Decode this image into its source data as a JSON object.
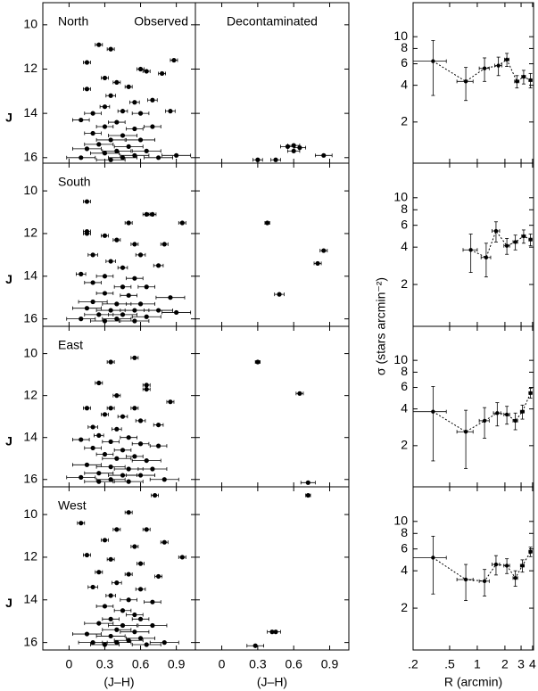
{
  "chart_data": [
    {
      "type": "scatter",
      "label": "North",
      "title": "Observed",
      "ylabel": "J",
      "color": "#000000",
      "x": [
        0.25,
        0.35,
        0.15,
        0.88,
        0.6,
        0.65,
        0.78,
        0.3,
        0.4,
        0.5,
        0.15,
        0.35,
        0.55,
        0.7,
        0.3,
        0.45,
        0.2,
        0.6,
        0.85,
        0.1,
        0.4,
        0.3,
        0.55,
        0.7,
        0.2,
        0.45,
        0.35,
        0.6,
        0.25,
        0.5,
        0.15,
        0.4,
        0.65,
        0.3,
        0.55,
        0.1,
        0.45,
        0.75,
        0.35,
        0.9
      ],
      "y": [
        10.9,
        11.1,
        11.7,
        11.6,
        12.0,
        12.1,
        12.2,
        12.4,
        12.6,
        12.8,
        12.9,
        13.2,
        13.5,
        13.4,
        13.7,
        13.9,
        14.0,
        14.0,
        13.9,
        14.3,
        14.4,
        14.6,
        14.7,
        14.6,
        14.9,
        15.0,
        15.2,
        15.2,
        15.4,
        15.5,
        15.6,
        15.7,
        15.7,
        15.8,
        15.9,
        16.0,
        16.0,
        16.0,
        16.1,
        15.9
      ],
      "xerr": [
        0.03,
        0.03,
        0.03,
        0.03,
        0.03,
        0.03,
        0.03,
        0.03,
        0.03,
        0.03,
        0.03,
        0.04,
        0.04,
        0.04,
        0.04,
        0.04,
        0.07,
        0.07,
        0.04,
        0.07,
        0.07,
        0.07,
        0.07,
        0.07,
        0.07,
        0.12,
        0.12,
        0.12,
        0.12,
        0.12,
        0.12,
        0.12,
        0.12,
        0.12,
        0.12,
        0.12,
        0.12,
        0.12,
        0.12,
        0.12
      ],
      "xlim": [
        -0.22,
        1.06
      ],
      "ylim": [
        16.25,
        9.0
      ],
      "yticks": [
        10,
        12,
        14,
        16
      ]
    },
    {
      "type": "scatter",
      "title": "Decontaminated",
      "color": "#000000",
      "x": [
        0.3,
        0.45,
        0.55,
        0.6,
        0.65,
        0.6,
        0.85
      ],
      "y": [
        16.1,
        16.1,
        15.5,
        15.45,
        15.55,
        15.7,
        15.9
      ],
      "xerr": [
        0.04,
        0.04,
        0.06,
        0.05,
        0.05,
        0.05,
        0.07
      ],
      "xlim": [
        -0.22,
        1.06
      ],
      "ylim": [
        16.25,
        9.0
      ]
    },
    {
      "type": "line",
      "color": "#000000",
      "linestyle": "dotted",
      "xscale": "log",
      "yscale": "log",
      "x": [
        0.33,
        0.75,
        1.2,
        1.7,
        2.1,
        2.7,
        3.2,
        3.8
      ],
      "y": [
        6.3,
        4.3,
        5.5,
        5.8,
        6.5,
        4.3,
        4.7,
        4.4
      ],
      "xerr": [
        0.13,
        0.15,
        0.15,
        0.15,
        0.12,
        0.15,
        0.15,
        0.15
      ],
      "yerr": [
        3.0,
        1.3,
        1.2,
        1.0,
        0.8,
        0.5,
        0.6,
        0.6
      ],
      "xlim": [
        0.2,
        4.1
      ],
      "ylim": [
        0.92,
        19
      ],
      "yticks": [
        2,
        4,
        6,
        8,
        10
      ]
    },
    {
      "type": "scatter",
      "label": "South",
      "ylabel": "J",
      "color": "#000000",
      "x": [
        0.15,
        0.15,
        0.15,
        0.65,
        0.7,
        0.95,
        0.5,
        0.3,
        0.4,
        0.55,
        0.8,
        0.2,
        0.6,
        0.35,
        0.45,
        0.75,
        0.1,
        0.3,
        0.55,
        0.2,
        0.45,
        0.65,
        0.3,
        0.5,
        0.85,
        0.2,
        0.4,
        0.6,
        0.15,
        0.35,
        0.55,
        0.75,
        0.25,
        0.45,
        0.65,
        0.1,
        0.4,
        0.9,
        0.3,
        0.55
      ],
      "y": [
        10.5,
        11.9,
        12.0,
        11.1,
        11.1,
        11.5,
        11.5,
        12.1,
        12.3,
        12.5,
        12.5,
        13.0,
        13.0,
        13.3,
        13.6,
        13.5,
        13.9,
        14.0,
        14.1,
        14.3,
        14.5,
        14.5,
        14.8,
        14.9,
        15.0,
        15.2,
        15.3,
        15.3,
        15.5,
        15.6,
        15.6,
        15.6,
        15.8,
        15.8,
        15.9,
        16.0,
        16.0,
        15.7,
        16.1,
        16.1
      ],
      "xerr": [
        0.03,
        0.03,
        0.03,
        0.03,
        0.03,
        0.03,
        0.03,
        0.03,
        0.03,
        0.03,
        0.03,
        0.04,
        0.04,
        0.04,
        0.04,
        0.04,
        0.04,
        0.07,
        0.07,
        0.07,
        0.07,
        0.07,
        0.07,
        0.07,
        0.12,
        0.12,
        0.12,
        0.12,
        0.12,
        0.12,
        0.12,
        0.12,
        0.12,
        0.12,
        0.12,
        0.12,
        0.12,
        0.12,
        0.12,
        0.12
      ],
      "xlim": [
        -0.22,
        1.06
      ],
      "ylim": [
        16.35,
        8.7
      ],
      "yticks": [
        10,
        12,
        14,
        16
      ]
    },
    {
      "type": "scatter",
      "color": "#000000",
      "x": [
        0.38,
        0.85,
        0.8,
        0.48
      ],
      "y": [
        11.5,
        12.8,
        13.4,
        14.85
      ],
      "xerr": [
        0.02,
        0.03,
        0.03,
        0.04
      ],
      "xlim": [
        -0.22,
        1.06
      ],
      "ylim": [
        16.35,
        8.7
      ]
    },
    {
      "type": "line",
      "color": "#000000",
      "linestyle": "dotted",
      "xscale": "log",
      "yscale": "log",
      "ylabel": "σ (stars arcmin⁻²)",
      "x": [
        0.85,
        1.25,
        1.6,
        2.1,
        2.6,
        3.2,
        3.8
      ],
      "y": [
        3.8,
        3.3,
        5.4,
        4.1,
        4.4,
        4.9,
        4.6
      ],
      "xerr": [
        0.15,
        0.15,
        0.15,
        0.15,
        0.15,
        0.15,
        0.15
      ],
      "yerr": [
        1.3,
        1.0,
        1.0,
        0.6,
        0.6,
        0.6,
        0.5
      ],
      "xlim": [
        0.2,
        4.1
      ],
      "ylim": [
        0.92,
        19
      ],
      "yticks": [
        2,
        4,
        6,
        8,
        10
      ]
    },
    {
      "type": "scatter",
      "label": "East",
      "ylabel": "J",
      "color": "#000000",
      "x": [
        0.35,
        0.55,
        0.25,
        0.65,
        0.65,
        0.4,
        0.85,
        0.15,
        0.35,
        0.55,
        0.3,
        0.45,
        0.6,
        0.75,
        0.2,
        0.4,
        0.25,
        0.5,
        0.1,
        0.35,
        0.6,
        0.75,
        0.2,
        0.45,
        0.3,
        0.55,
        0.4,
        0.65,
        0.15,
        0.35,
        0.5,
        0.7,
        0.25,
        0.45,
        0.6,
        0.1,
        0.35,
        0.8,
        0.5,
        0.25
      ],
      "y": [
        10.4,
        10.2,
        11.4,
        11.5,
        11.7,
        12.0,
        12.3,
        12.6,
        12.6,
        12.6,
        12.9,
        13.0,
        13.2,
        13.4,
        13.5,
        13.6,
        13.9,
        14.0,
        14.1,
        14.2,
        14.3,
        14.4,
        14.5,
        14.6,
        14.8,
        14.9,
        15.0,
        15.1,
        15.3,
        15.4,
        15.5,
        15.5,
        15.7,
        15.8,
        15.8,
        15.9,
        16.0,
        16.0,
        16.1,
        16.1
      ],
      "xerr": [
        0.03,
        0.03,
        0.03,
        0.03,
        0.03,
        0.03,
        0.03,
        0.03,
        0.03,
        0.03,
        0.03,
        0.04,
        0.04,
        0.04,
        0.04,
        0.04,
        0.04,
        0.07,
        0.07,
        0.07,
        0.07,
        0.07,
        0.07,
        0.07,
        0.07,
        0.07,
        0.12,
        0.12,
        0.12,
        0.12,
        0.12,
        0.12,
        0.12,
        0.12,
        0.12,
        0.12,
        0.12,
        0.12,
        0.12,
        0.12
      ],
      "xlim": [
        -0.22,
        1.06
      ],
      "ylim": [
        16.35,
        8.7
      ],
      "yticks": [
        10,
        12,
        14,
        16
      ]
    },
    {
      "type": "scatter",
      "color": "#000000",
      "x": [
        0.3,
        0.65,
        0.72
      ],
      "y": [
        10.4,
        11.9,
        16.15
      ],
      "xerr": [
        0.02,
        0.03,
        0.06
      ],
      "xlim": [
        -0.22,
        1.06
      ],
      "ylim": [
        16.35,
        8.7
      ]
    },
    {
      "type": "line",
      "color": "#000000",
      "linestyle": "dotted",
      "xscale": "log",
      "yscale": "log",
      "x": [
        0.33,
        0.75,
        1.2,
        1.65,
        2.1,
        2.6,
        3.1,
        3.8
      ],
      "y": [
        3.8,
        2.6,
        3.2,
        3.7,
        3.6,
        3.2,
        3.8,
        5.4
      ],
      "xerr": [
        0.13,
        0.15,
        0.15,
        0.15,
        0.15,
        0.15,
        0.15,
        0.15
      ],
      "yerr": [
        2.3,
        1.3,
        0.9,
        0.8,
        0.6,
        0.5,
        0.5,
        0.5
      ],
      "xlim": [
        0.2,
        4.1
      ],
      "ylim": [
        0.92,
        19
      ],
      "yticks": [
        2,
        4,
        6,
        8,
        10
      ]
    },
    {
      "type": "scatter",
      "label": "West",
      "ylabel": "J",
      "xlabel": "(J–H)",
      "color": "#000000",
      "x": [
        0.72,
        0.5,
        0.1,
        0.4,
        0.65,
        0.3,
        0.55,
        0.8,
        0.15,
        0.95,
        0.35,
        0.6,
        0.25,
        0.5,
        0.75,
        0.4,
        0.2,
        0.6,
        0.35,
        0.5,
        0.7,
        0.3,
        0.45,
        0.55,
        0.35,
        0.6,
        0.25,
        0.45,
        0.7,
        0.4,
        0.55,
        0.15,
        0.35,
        0.6,
        0.5,
        0.2,
        0.4,
        0.8,
        0.3,
        0.65
      ],
      "y": [
        9.1,
        9.9,
        10.4,
        10.7,
        10.7,
        11.2,
        11.5,
        11.3,
        11.9,
        12.0,
        12.1,
        12.3,
        12.7,
        12.8,
        12.9,
        13.2,
        13.4,
        13.5,
        13.8,
        14.0,
        14.1,
        14.3,
        14.5,
        14.7,
        14.9,
        14.9,
        15.1,
        15.2,
        15.2,
        15.4,
        15.5,
        15.6,
        15.7,
        15.8,
        15.9,
        16.0,
        16.0,
        16.0,
        16.1,
        16.1
      ],
      "xerr": [
        0.03,
        0.03,
        0.03,
        0.03,
        0.03,
        0.03,
        0.03,
        0.03,
        0.03,
        0.03,
        0.03,
        0.03,
        0.03,
        0.03,
        0.03,
        0.04,
        0.04,
        0.04,
        0.04,
        0.07,
        0.07,
        0.07,
        0.07,
        0.07,
        0.07,
        0.07,
        0.12,
        0.12,
        0.12,
        0.12,
        0.12,
        0.12,
        0.12,
        0.12,
        0.12,
        0.12,
        0.12,
        0.12,
        0.12,
        0.12
      ],
      "xlim": [
        -0.22,
        1.06
      ],
      "ylim": [
        16.35,
        8.7
      ],
      "yticks": [
        10,
        12,
        14,
        16
      ],
      "xticks": [
        0,
        0.3,
        0.6,
        0.9
      ]
    },
    {
      "type": "scatter",
      "xlabel": "(J–H)",
      "color": "#000000",
      "x": [
        0.72,
        0.45,
        0.42,
        0.28
      ],
      "y": [
        9.1,
        15.5,
        15.5,
        16.15
      ],
      "xerr": [
        0.02,
        0.04,
        0.04,
        0.07
      ],
      "xlim": [
        -0.22,
        1.06
      ],
      "ylim": [
        16.35,
        8.7
      ],
      "xticks": [
        0,
        0.3,
        0.6,
        0.9
      ]
    },
    {
      "type": "line",
      "color": "#000000",
      "linestyle": "dotted",
      "xscale": "log",
      "yscale": "log",
      "xlabel": "R (arcmin)",
      "x": [
        0.33,
        0.75,
        1.2,
        1.6,
        2.1,
        2.6,
        3.1,
        3.8
      ],
      "y": [
        5.1,
        3.4,
        3.3,
        4.5,
        4.4,
        3.5,
        4.4,
        5.7
      ],
      "xerr": [
        0.13,
        0.15,
        0.15,
        0.15,
        0.15,
        0.15,
        0.15,
        0.15
      ],
      "yerr": [
        2.5,
        1.1,
        0.8,
        0.8,
        0.6,
        0.5,
        0.5,
        0.5
      ],
      "xlim": [
        0.2,
        4.1
      ],
      "ylim": [
        0.92,
        19
      ],
      "yticks": [
        2,
        4,
        6,
        8,
        10
      ],
      "xticks": [
        {
          "value": 0.2,
          "label": ".2"
        },
        {
          "value": 0.5,
          "label": ".5"
        },
        1,
        2,
        3,
        4
      ]
    }
  ]
}
